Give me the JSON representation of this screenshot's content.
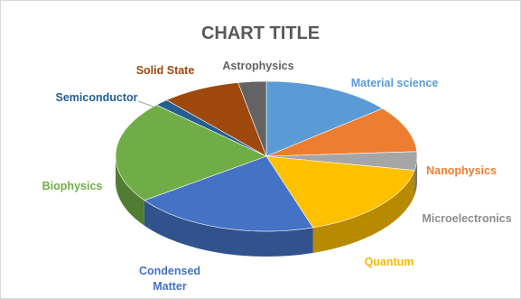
{
  "chart_data": {
    "type": "pie",
    "title": "CHART TITLE",
    "legend": "labels-on-slices",
    "slices": [
      {
        "label": "Material science",
        "value": 14,
        "color": "#5B9BD5"
      },
      {
        "label": "Nanophysics",
        "value": 10,
        "color": "#ED7D31"
      },
      {
        "label": "Microelectronics",
        "value": 4,
        "color": "#A5A5A5"
      },
      {
        "label": "Quantum",
        "value": 17,
        "color": "#FFC000"
      },
      {
        "label": "Condensed Matter",
        "value": 20,
        "color": "#4472C4"
      },
      {
        "label": "Biophysics",
        "value": 22,
        "color": "#70AD47"
      },
      {
        "label": "Semiconductor",
        "value": 1.5,
        "color": "#255E91"
      },
      {
        "label": "Solid State",
        "value": 8.5,
        "color": "#9E480E"
      },
      {
        "label": "Astrophysics",
        "value": 3,
        "color": "#636363"
      }
    ]
  }
}
